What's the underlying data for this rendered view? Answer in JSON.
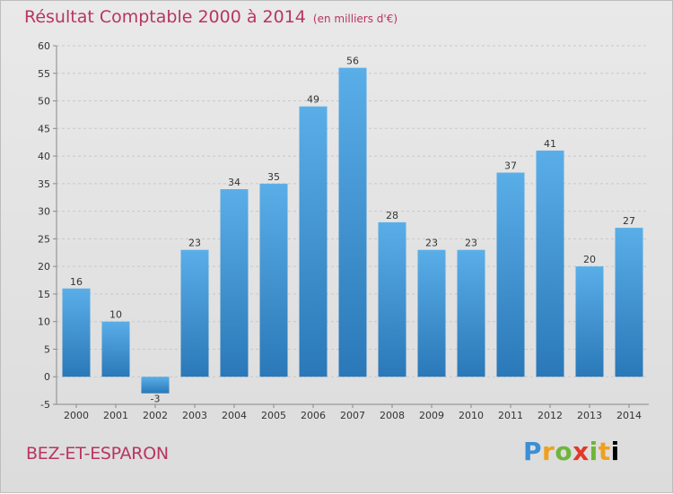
{
  "header": {
    "title": "Résultat Comptable 2000 à 2014",
    "subtitle": "(en milliers d'€)"
  },
  "footer": {
    "commune": "BEZ-ET-ESPARON",
    "logo": "Proxiti"
  },
  "colors": {
    "title": "#b8355f",
    "bar_top": "#5aaee8",
    "bar_bottom": "#2a78b8",
    "grid": "#c8c8c8"
  },
  "chart_data": {
    "type": "bar",
    "title": "Résultat Comptable 2000 à 2014",
    "subtitle": "(en milliers d'€)",
    "xlabel": "",
    "ylabel": "",
    "categories": [
      "2000",
      "2001",
      "2002",
      "2003",
      "2004",
      "2005",
      "2006",
      "2007",
      "2008",
      "2009",
      "2010",
      "2011",
      "2012",
      "2013",
      "2014"
    ],
    "values": [
      16,
      10,
      -3,
      23,
      34,
      35,
      49,
      56,
      28,
      23,
      23,
      37,
      41,
      20,
      27
    ],
    "ylim": [
      -5,
      60
    ],
    "yticks": [
      -5,
      0,
      5,
      10,
      15,
      20,
      25,
      30,
      35,
      40,
      45,
      50,
      55,
      60
    ],
    "grid": "horizontal dashed",
    "legend": "none"
  }
}
